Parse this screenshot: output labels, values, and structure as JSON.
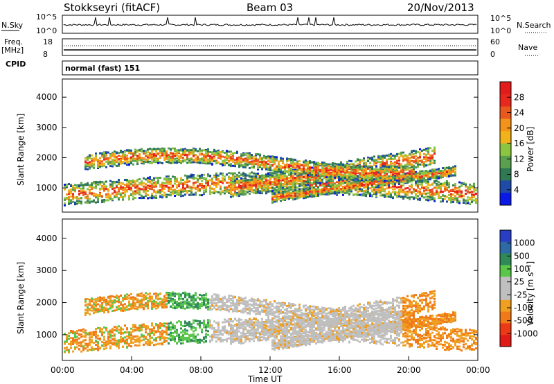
{
  "header": {
    "station": "Stokkseyri (fitACF)",
    "beam": "Beam 03",
    "date": "20/Nov/2013"
  },
  "sky_panel": {
    "left_label": "N.Sky",
    "left_ticks": [
      "10^5",
      "10^0"
    ],
    "right_label": "N.Search",
    "right_ticks": [
      "10^5",
      "10^0"
    ]
  },
  "freq_panel": {
    "left_label_1": "Freq.",
    "left_label_2": "[MHz]",
    "left_ticks": [
      "18",
      "8"
    ],
    "right_label": "Nave",
    "right_ticks": [
      "60",
      "0"
    ],
    "cpid_label": "CPID"
  },
  "cpid_text": "normal (fast) 151",
  "chart_data": [
    {
      "type": "heatmap",
      "name": "power",
      "ylabel": "Slant Range [km]",
      "xlabel": "",
      "ylim": [
        200,
        4600
      ],
      "yticks": [
        "1000",
        "2000",
        "3000",
        "4000"
      ],
      "colorbar": {
        "label": "Power [dB]",
        "ticks": [
          "4",
          "8",
          "12",
          "16",
          "20",
          "24",
          "28"
        ],
        "colors": [
          "#0a19e6",
          "#1e4aa8",
          "#2f7a55",
          "#5aa04f",
          "#8cc53f",
          "#f2b21b",
          "#f3931c",
          "#e9591d",
          "#e8281d",
          "#e31b1b"
        ]
      }
    },
    {
      "type": "heatmap",
      "name": "velocity",
      "ylabel": "Slant Range [km]",
      "xlabel": "Time UT",
      "ylim": [
        200,
        4600
      ],
      "yticks": [
        "1000",
        "2000",
        "3000",
        "4000"
      ],
      "xticks": [
        "00:00",
        "04:00",
        "08:00",
        "12:00",
        "16:00",
        "20:00",
        "00:00"
      ],
      "colorbar": {
        "label": "Velocity [m s⁻¹]",
        "ticks": [
          "1000",
          "500",
          "100",
          "25",
          "-25",
          "-100",
          "-500",
          "-1000"
        ],
        "colors": [
          "#2a3ec4",
          "#2f6aa6",
          "#2f8a58",
          "#5ac74a",
          "#bfbfbf",
          "#bfbfbf",
          "#f0a020",
          "#f07a1a",
          "#ec3a16",
          "#e01a16"
        ]
      }
    }
  ]
}
